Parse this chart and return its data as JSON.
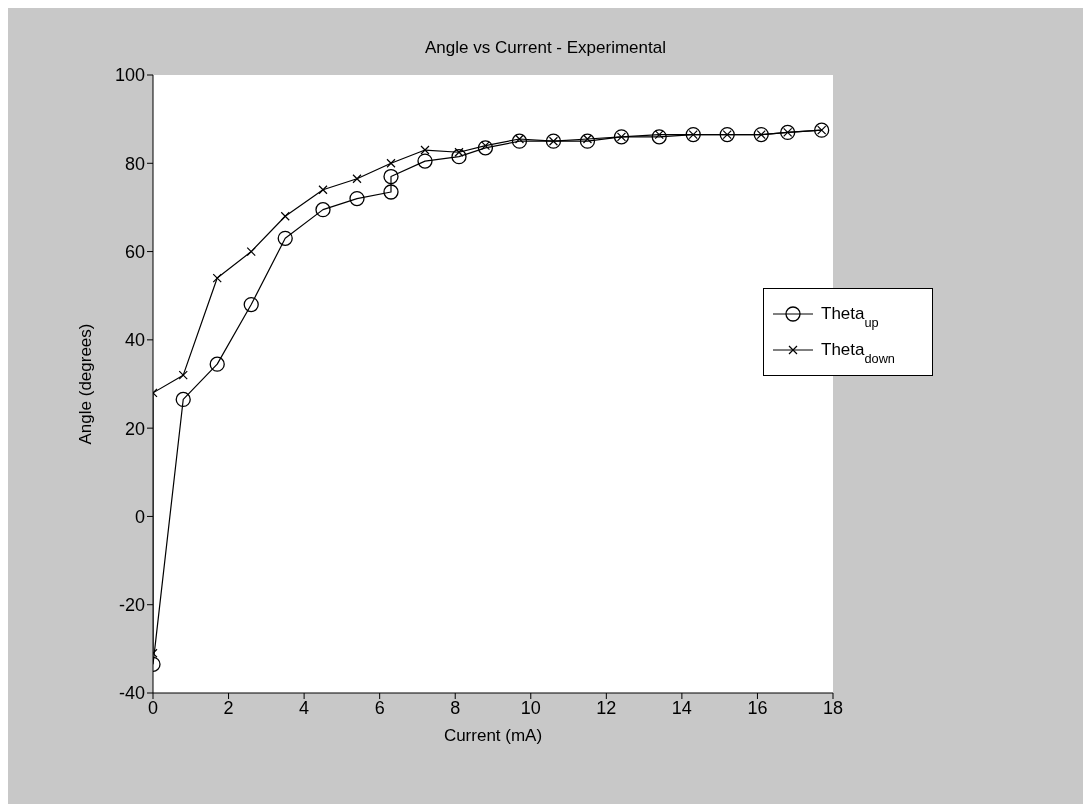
{
  "chart_data": {
    "type": "line",
    "title": "Angle vs Current - Experimental",
    "xlabel": "Current (mA)",
    "ylabel": "Angle (degrees)",
    "xlim": [
      0,
      18
    ],
    "xticks": [
      0,
      2,
      4,
      6,
      8,
      10,
      12,
      14,
      16,
      18
    ],
    "ylim": [
      -40,
      100
    ],
    "yticks": [
      -40,
      -20,
      0,
      20,
      40,
      60,
      80,
      100
    ],
    "legend": "right",
    "line_style": "solid",
    "series": [
      {
        "name": "Theta$_{up}$",
        "color": "#000000",
        "marker": "circle",
        "x": [
          0,
          0.8,
          1.7,
          2.6,
          3.5,
          4.5,
          5.4,
          6.3,
          6.3,
          7.2,
          8.1,
          8.8,
          9.7,
          10.6,
          11.5,
          12.4,
          13.4,
          14.3,
          15.2,
          16.1,
          16.8,
          17.7
        ],
        "values": [
          -33.5,
          26.5,
          34.5,
          48,
          63,
          69.5,
          72,
          73.5,
          77,
          80.5,
          81.5,
          83.5,
          85,
          85,
          85,
          86,
          86,
          86.5,
          86.5,
          86.5,
          87,
          87.5
        ]
      },
      {
        "name": "Theta$_{down}$",
        "color": "#000000",
        "marker": "cross",
        "x": [
          0,
          0,
          0.8,
          1.7,
          2.6,
          3.5,
          4.5,
          5.4,
          6.3,
          7.2,
          8.1,
          8.8,
          9.7,
          10.6,
          11.5,
          12.4,
          13.4,
          14.3,
          15.2,
          16.1,
          16.8,
          17.7
        ],
        "values": [
          -31,
          28,
          32,
          54,
          60,
          68,
          74,
          76.5,
          80,
          83,
          82.5,
          84,
          85.5,
          85,
          85.5,
          86,
          86.5,
          86.5,
          86.5,
          86.5,
          87,
          87.5
        ]
      }
    ]
  }
}
